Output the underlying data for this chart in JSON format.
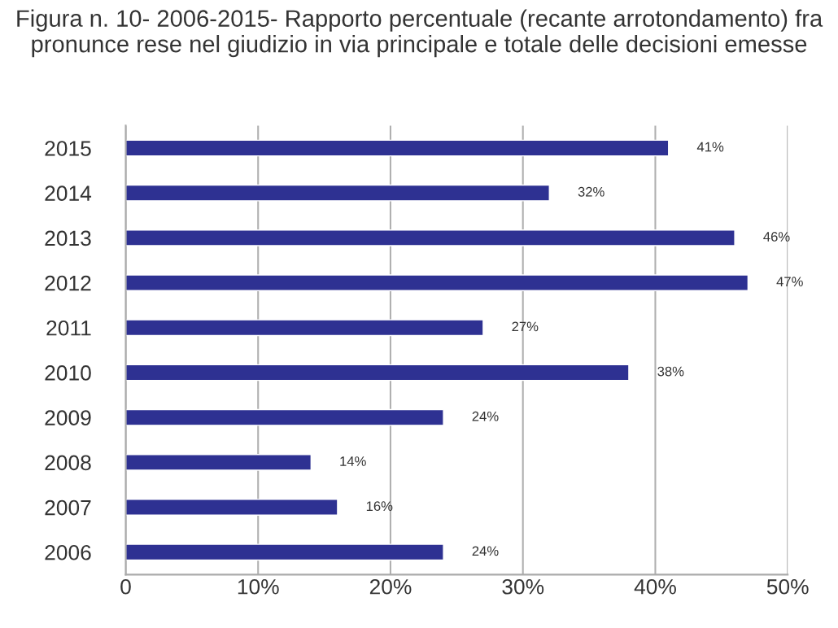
{
  "chart_data": {
    "type": "bar",
    "orientation": "horizontal",
    "title": "Figura n. 10- 2006-2015- Rapporto percentuale (recante arrotondamento) fra pronunce rese nel giudizio in via principale e totale delle decisioni emesse",
    "categories": [
      "2015",
      "2014",
      "2013",
      "2012",
      "2011",
      "2010",
      "2009",
      "2008",
      "2007",
      "2006"
    ],
    "values": [
      41,
      32,
      46,
      47,
      27,
      38,
      24,
      14,
      16,
      24
    ],
    "value_labels": [
      "41%",
      "32%",
      "46%",
      "47%",
      "27%",
      "38%",
      "24%",
      "14%",
      "16%",
      "24%"
    ],
    "color": "#2e3192",
    "xlim": [
      0,
      50
    ],
    "xticks": [
      0,
      {
        "value": 10,
        "label": "10%"
      },
      {
        "value": 20,
        "label": "20%"
      },
      {
        "value": 30,
        "label": "30%"
      },
      {
        "value": 40,
        "label": "40%"
      },
      {
        "value": 50,
        "label": "50%"
      }
    ],
    "grid": "x"
  }
}
